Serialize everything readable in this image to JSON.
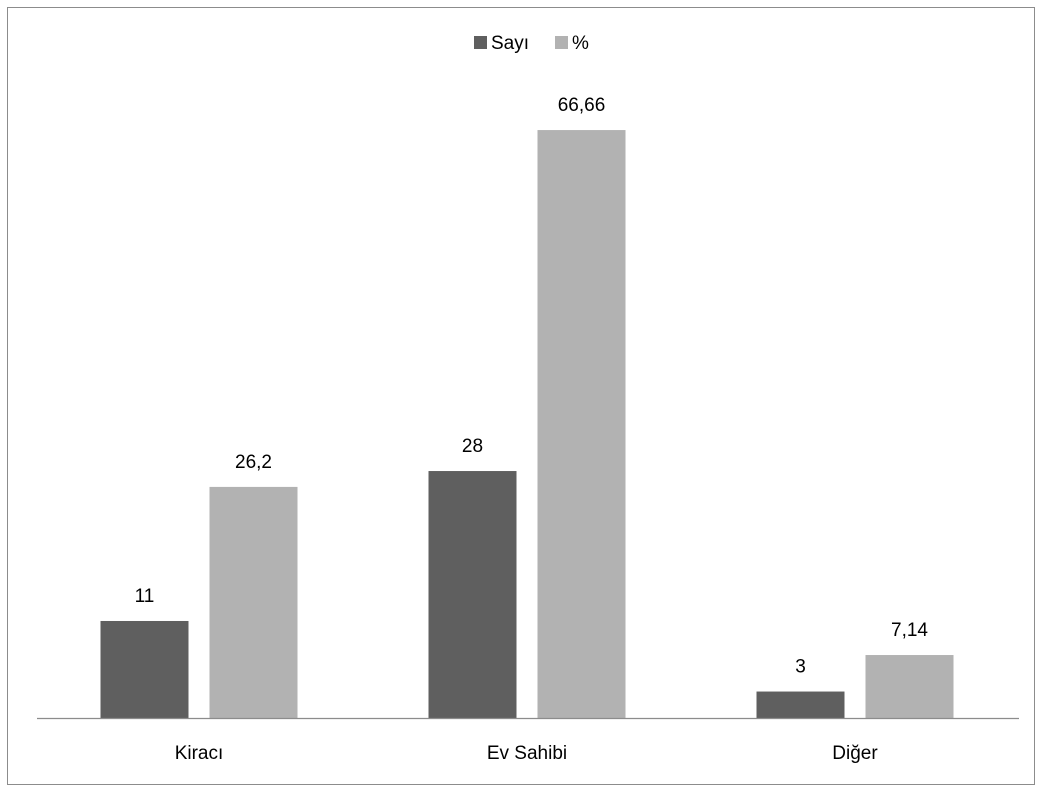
{
  "chart_data": {
    "type": "bar",
    "categories": [
      "Kiracı",
      "Ev Sahibi",
      "Diğer"
    ],
    "series": [
      {
        "name": "Sayı",
        "values": [
          11,
          28,
          3
        ],
        "labels": [
          "11",
          "28",
          "3"
        ],
        "color": "#5f5f5f"
      },
      {
        "name": "%",
        "values": [
          26.2,
          66.66,
          7.14
        ],
        "labels": [
          "26,2",
          "66,66",
          "7,14"
        ],
        "color": "#b2b2b2"
      }
    ],
    "ylim": [
      0,
      70
    ],
    "legend_position": "top-center",
    "grid": false
  },
  "colors": {
    "axis": "#8c8c8c",
    "frame": "#8c8c8c"
  }
}
